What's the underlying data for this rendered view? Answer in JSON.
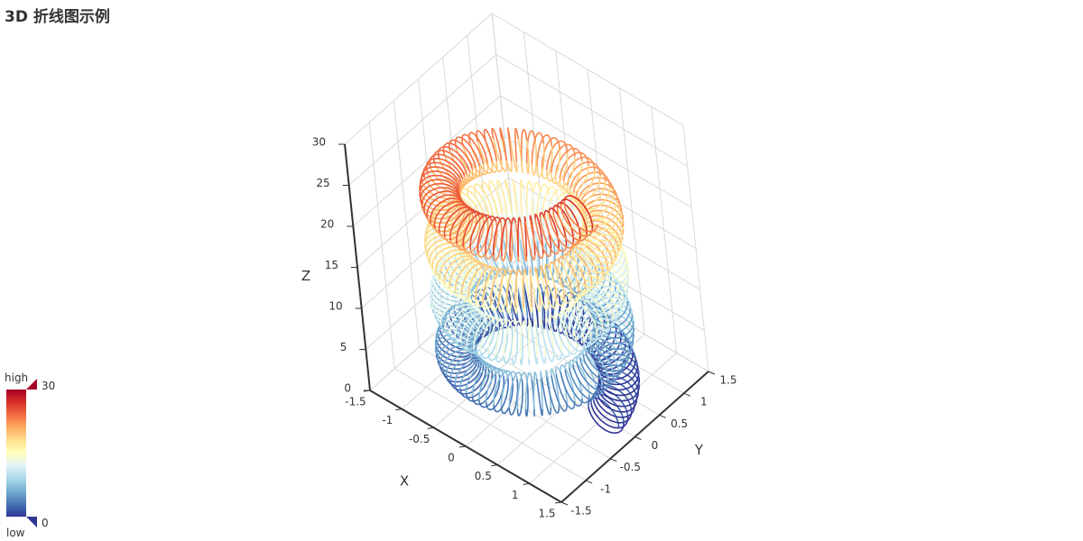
{
  "title": "3D 折线图示例",
  "chart_data": {
    "type": "line3d",
    "title": "3D 折线图示例",
    "curve": {
      "description": "toroidal helix",
      "x": "(1 + 0.25*cos(75*t)) * cos(t)",
      "y": "(1 + 0.25*cos(75*t)) * sin(t)",
      "z": "t + 2*sin(75*t)",
      "t_range": [
        0,
        25.13
      ]
    },
    "axes": {
      "x": {
        "name": "X",
        "range": [
          -1.5,
          1.5
        ],
        "ticks": [
          "-1.5",
          "-1",
          "-0.5",
          "0",
          "0.5",
          "1",
          "1.5"
        ]
      },
      "y": {
        "name": "Y",
        "range": [
          -1.5,
          1.5
        ],
        "ticks": [
          "-1.5",
          "-1",
          "-0.5",
          "0",
          "0.5",
          "1",
          "1.5"
        ]
      },
      "z": {
        "name": "Z",
        "range": [
          0,
          30
        ],
        "ticks": [
          "0",
          "5",
          "10",
          "15",
          "20",
          "25",
          "30"
        ]
      }
    },
    "grid": true,
    "visual_map": {
      "min": 0,
      "max": 30,
      "max_label": "30",
      "min_label": "0",
      "high_text": "high",
      "low_text": "low",
      "placement": "bottom-left",
      "colors": [
        "#313695",
        "#4575b4",
        "#74add1",
        "#abd9e9",
        "#e0f3f8",
        "#ffffbf",
        "#fee090",
        "#fdae61",
        "#f46d43",
        "#d73027",
        "#a50026"
      ]
    }
  }
}
